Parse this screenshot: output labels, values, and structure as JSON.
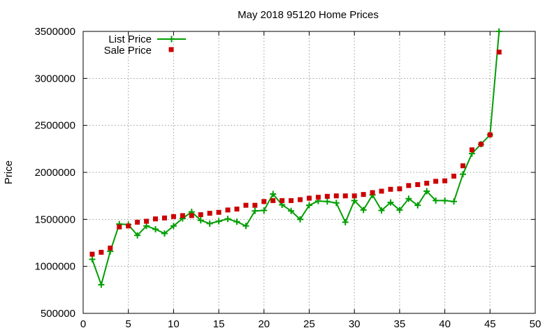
{
  "chart_data": {
    "type": "line",
    "title": "May 2018 95120 Home Prices",
    "xlabel": "",
    "ylabel": "Price",
    "xlim": [
      0,
      50
    ],
    "ylim": [
      500000,
      3500000
    ],
    "grid": true,
    "legend_position": "top-left",
    "x_ticks": [
      "0",
      "5",
      "10",
      "15",
      "20",
      "25",
      "30",
      "35",
      "40",
      "45",
      "50"
    ],
    "y_ticks": [
      "500000",
      "1000000",
      "1500000",
      "2000000",
      "2500000",
      "3000000",
      "3500000"
    ],
    "x": [
      1,
      2,
      3,
      4,
      5,
      6,
      7,
      8,
      9,
      10,
      11,
      12,
      13,
      14,
      15,
      16,
      17,
      18,
      19,
      20,
      21,
      22,
      23,
      24,
      25,
      26,
      27,
      28,
      29,
      30,
      31,
      32,
      33,
      34,
      35,
      36,
      37,
      38,
      39,
      40,
      41,
      42,
      43,
      44,
      45,
      46
    ],
    "series": [
      {
        "name": "List Price",
        "color": "#009e00",
        "style": "linespoints",
        "values": [
          1075000,
          805000,
          1160000,
          1450000,
          1445000,
          1330000,
          1430000,
          1395000,
          1350000,
          1430000,
          1510000,
          1580000,
          1490000,
          1455000,
          1480000,
          1505000,
          1475000,
          1430000,
          1590000,
          1595000,
          1770000,
          1655000,
          1590000,
          1500000,
          1650000,
          1695000,
          1690000,
          1675000,
          1470000,
          1700000,
          1600000,
          1760000,
          1595000,
          1680000,
          1600000,
          1720000,
          1650000,
          1800000,
          1700000,
          1700000,
          1690000,
          1980000,
          2200000,
          2300000,
          2400000,
          3500000
        ]
      },
      {
        "name": "Sale Price",
        "color": "#cc0000",
        "style": "points",
        "values": [
          1130000,
          1150000,
          1195000,
          1420000,
          1430000,
          1470000,
          1480000,
          1505000,
          1515000,
          1530000,
          1540000,
          1540000,
          1550000,
          1565000,
          1575000,
          1600000,
          1610000,
          1650000,
          1650000,
          1690000,
          1700000,
          1700000,
          1700000,
          1710000,
          1725000,
          1735000,
          1745000,
          1750000,
          1750000,
          1750000,
          1765000,
          1785000,
          1800000,
          1820000,
          1825000,
          1860000,
          1870000,
          1885000,
          1905000,
          1910000,
          1960000,
          2070000,
          2240000,
          2300000,
          2400000,
          3280000
        ]
      }
    ]
  }
}
